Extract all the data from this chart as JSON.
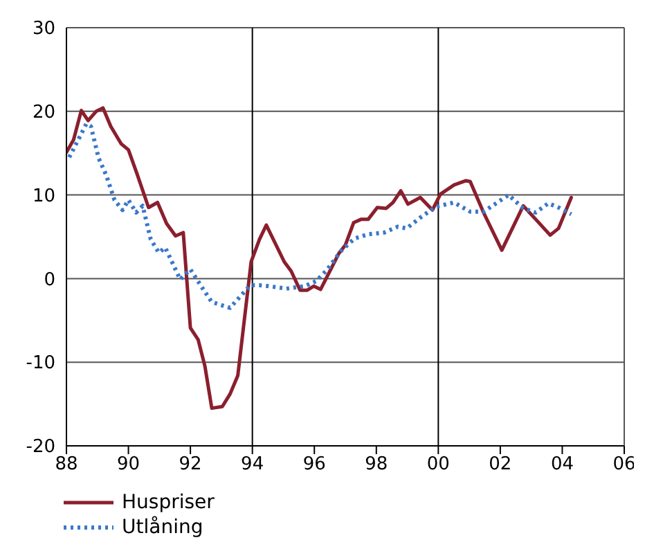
{
  "chart_data": {
    "type": "line",
    "xlim": [
      1988,
      2006
    ],
    "ylim": [
      -20,
      30
    ],
    "xticks": [
      {
        "value": 1988,
        "label": "88"
      },
      {
        "value": 1990,
        "label": "90"
      },
      {
        "value": 1992,
        "label": "92"
      },
      {
        "value": 1994,
        "label": "94"
      },
      {
        "value": 1996,
        "label": "96"
      },
      {
        "value": 1998,
        "label": "98"
      },
      {
        "value": 2000,
        "label": "00"
      },
      {
        "value": 2002,
        "label": "02"
      },
      {
        "value": 2004,
        "label": "04"
      },
      {
        "value": 2006,
        "label": "06"
      }
    ],
    "yticks": [
      -20,
      -10,
      0,
      10,
      20,
      30
    ],
    "grid": "y",
    "legend": "bottom",
    "marker": "none",
    "ref_lines": [
      {
        "axis": "x",
        "value": 1994,
        "color": "#000000"
      },
      {
        "axis": "x",
        "value": 2000,
        "color": "#000000"
      }
    ],
    "series": [
      {
        "name": "Huspriser",
        "color": "#8b1f2e",
        "line_style": "solid",
        "x": [
          1988.0,
          1988.23,
          1988.48,
          1988.7,
          1988.96,
          1989.18,
          1989.43,
          1989.77,
          1990.0,
          1990.28,
          1990.65,
          1990.94,
          1991.23,
          1991.52,
          1991.77,
          1992.0,
          1992.25,
          1992.47,
          1992.69,
          1993.03,
          1993.28,
          1993.53,
          1993.96,
          1994.23,
          1994.45,
          1995.03,
          1995.25,
          1995.54,
          1995.76,
          1995.98,
          1996.2,
          1996.79,
          1997.0,
          1997.27,
          1997.52,
          1997.74,
          1998.03,
          1998.32,
          1998.54,
          1998.79,
          1999.02,
          1999.42,
          1999.81,
          2000.07,
          2000.51,
          2000.88,
          2001.03,
          2001.46,
          2002.05,
          2002.74,
          2003.14,
          2003.61,
          2003.88,
          2004.29
        ],
        "values": [
          15.1,
          16.6,
          20.1,
          18.9,
          20.0,
          20.4,
          18.2,
          16.1,
          15.4,
          12.5,
          8.5,
          9.1,
          6.6,
          5.1,
          5.5,
          -5.9,
          -7.3,
          -10.5,
          -15.5,
          -15.3,
          -13.8,
          -11.6,
          2.0,
          4.7,
          6.4,
          2.0,
          0.9,
          -1.4,
          -1.4,
          -0.9,
          -1.3,
          3.0,
          4.0,
          6.7,
          7.1,
          7.1,
          8.5,
          8.4,
          9.1,
          10.5,
          8.9,
          9.7,
          8.2,
          10.1,
          11.2,
          11.7,
          11.6,
          7.9,
          3.4,
          8.7,
          7.1,
          5.2,
          6.0,
          9.7
        ]
      },
      {
        "name": "Utlåning",
        "color": "#3a78c9",
        "line_style": "dotted",
        "x": [
          1988.09,
          1988.45,
          1988.64,
          1988.79,
          1989.04,
          1989.29,
          1989.55,
          1989.81,
          1990.0,
          1990.25,
          1990.46,
          1990.72,
          1990.98,
          1991.19,
          1991.67,
          1992.0,
          1992.4,
          1992.69,
          1993.28,
          1993.64,
          1993.93,
          1994.23,
          1994.52,
          1995.1,
          1995.69,
          1996.06,
          1996.42,
          1996.86,
          1997.3,
          1997.74,
          1998.25,
          1998.69,
          1998.98,
          1999.42,
          1999.93,
          2000.51,
          2001.03,
          2001.46,
          2002.27,
          2002.74,
          2003.14,
          2003.55,
          2003.88,
          2004.29
        ],
        "values": [
          14.5,
          17.1,
          18.5,
          18.2,
          14.4,
          12.3,
          9.4,
          8.2,
          9.4,
          7.9,
          8.7,
          4.7,
          3.1,
          3.7,
          -0.1,
          1.1,
          -1.2,
          -2.8,
          -3.5,
          -2.0,
          -0.8,
          -0.8,
          -0.9,
          -1.2,
          -0.9,
          -0.3,
          1.1,
          3.3,
          4.8,
          5.3,
          5.5,
          6.2,
          6.0,
          7.3,
          8.6,
          9.1,
          8.0,
          8.0,
          10.0,
          8.4,
          7.9,
          9.0,
          8.5,
          7.7
        ]
      }
    ]
  }
}
